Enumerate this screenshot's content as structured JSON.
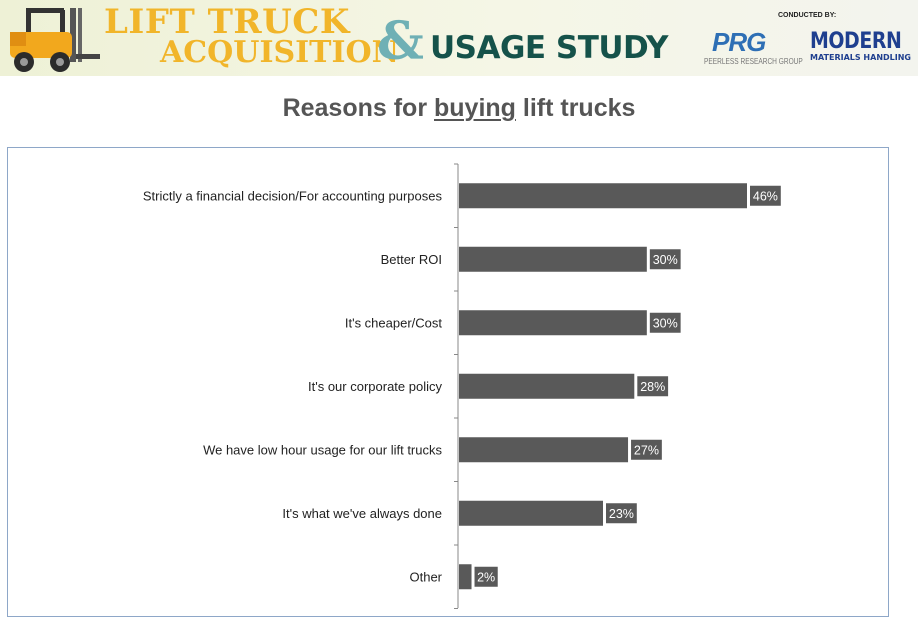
{
  "header": {
    "title_line1": "LIFT TRUCK",
    "title_line2": "ACQUISITION",
    "ampersand": "&",
    "title_usage": "USAGE STUDY",
    "conducted_by": "CONDUCTED BY:",
    "prg_logo": "PRG",
    "prg_subtitle": "PEERLESS RESEARCH GROUP",
    "mmh_logo_line1": "MODERN",
    "mmh_logo_line2": "MATERIALS HANDLING"
  },
  "colors": {
    "bar": "#595959",
    "label_box": "#595959",
    "label_text": "#ffffff",
    "axis": "#888888",
    "frame": "#8ea7c8"
  },
  "chart_data": {
    "type": "bar",
    "orientation": "horizontal",
    "title_prefix": "Reasons for ",
    "title_underlined": "buying",
    "title_suffix": " lift trucks",
    "categories": [
      "Strictly a financial decision/For accounting purposes",
      "Better ROI",
      "It's cheaper/Cost",
      "It's our corporate policy",
      "We have low hour usage for our lift trucks",
      "It's what we've always done",
      "Other"
    ],
    "values": [
      46,
      30,
      30,
      28,
      27,
      23,
      2
    ],
    "value_labels": [
      "46%",
      "30%",
      "30%",
      "28%",
      "27%",
      "23%",
      "2%"
    ],
    "xlim": [
      0,
      50
    ],
    "grid": false,
    "legend": "none"
  }
}
